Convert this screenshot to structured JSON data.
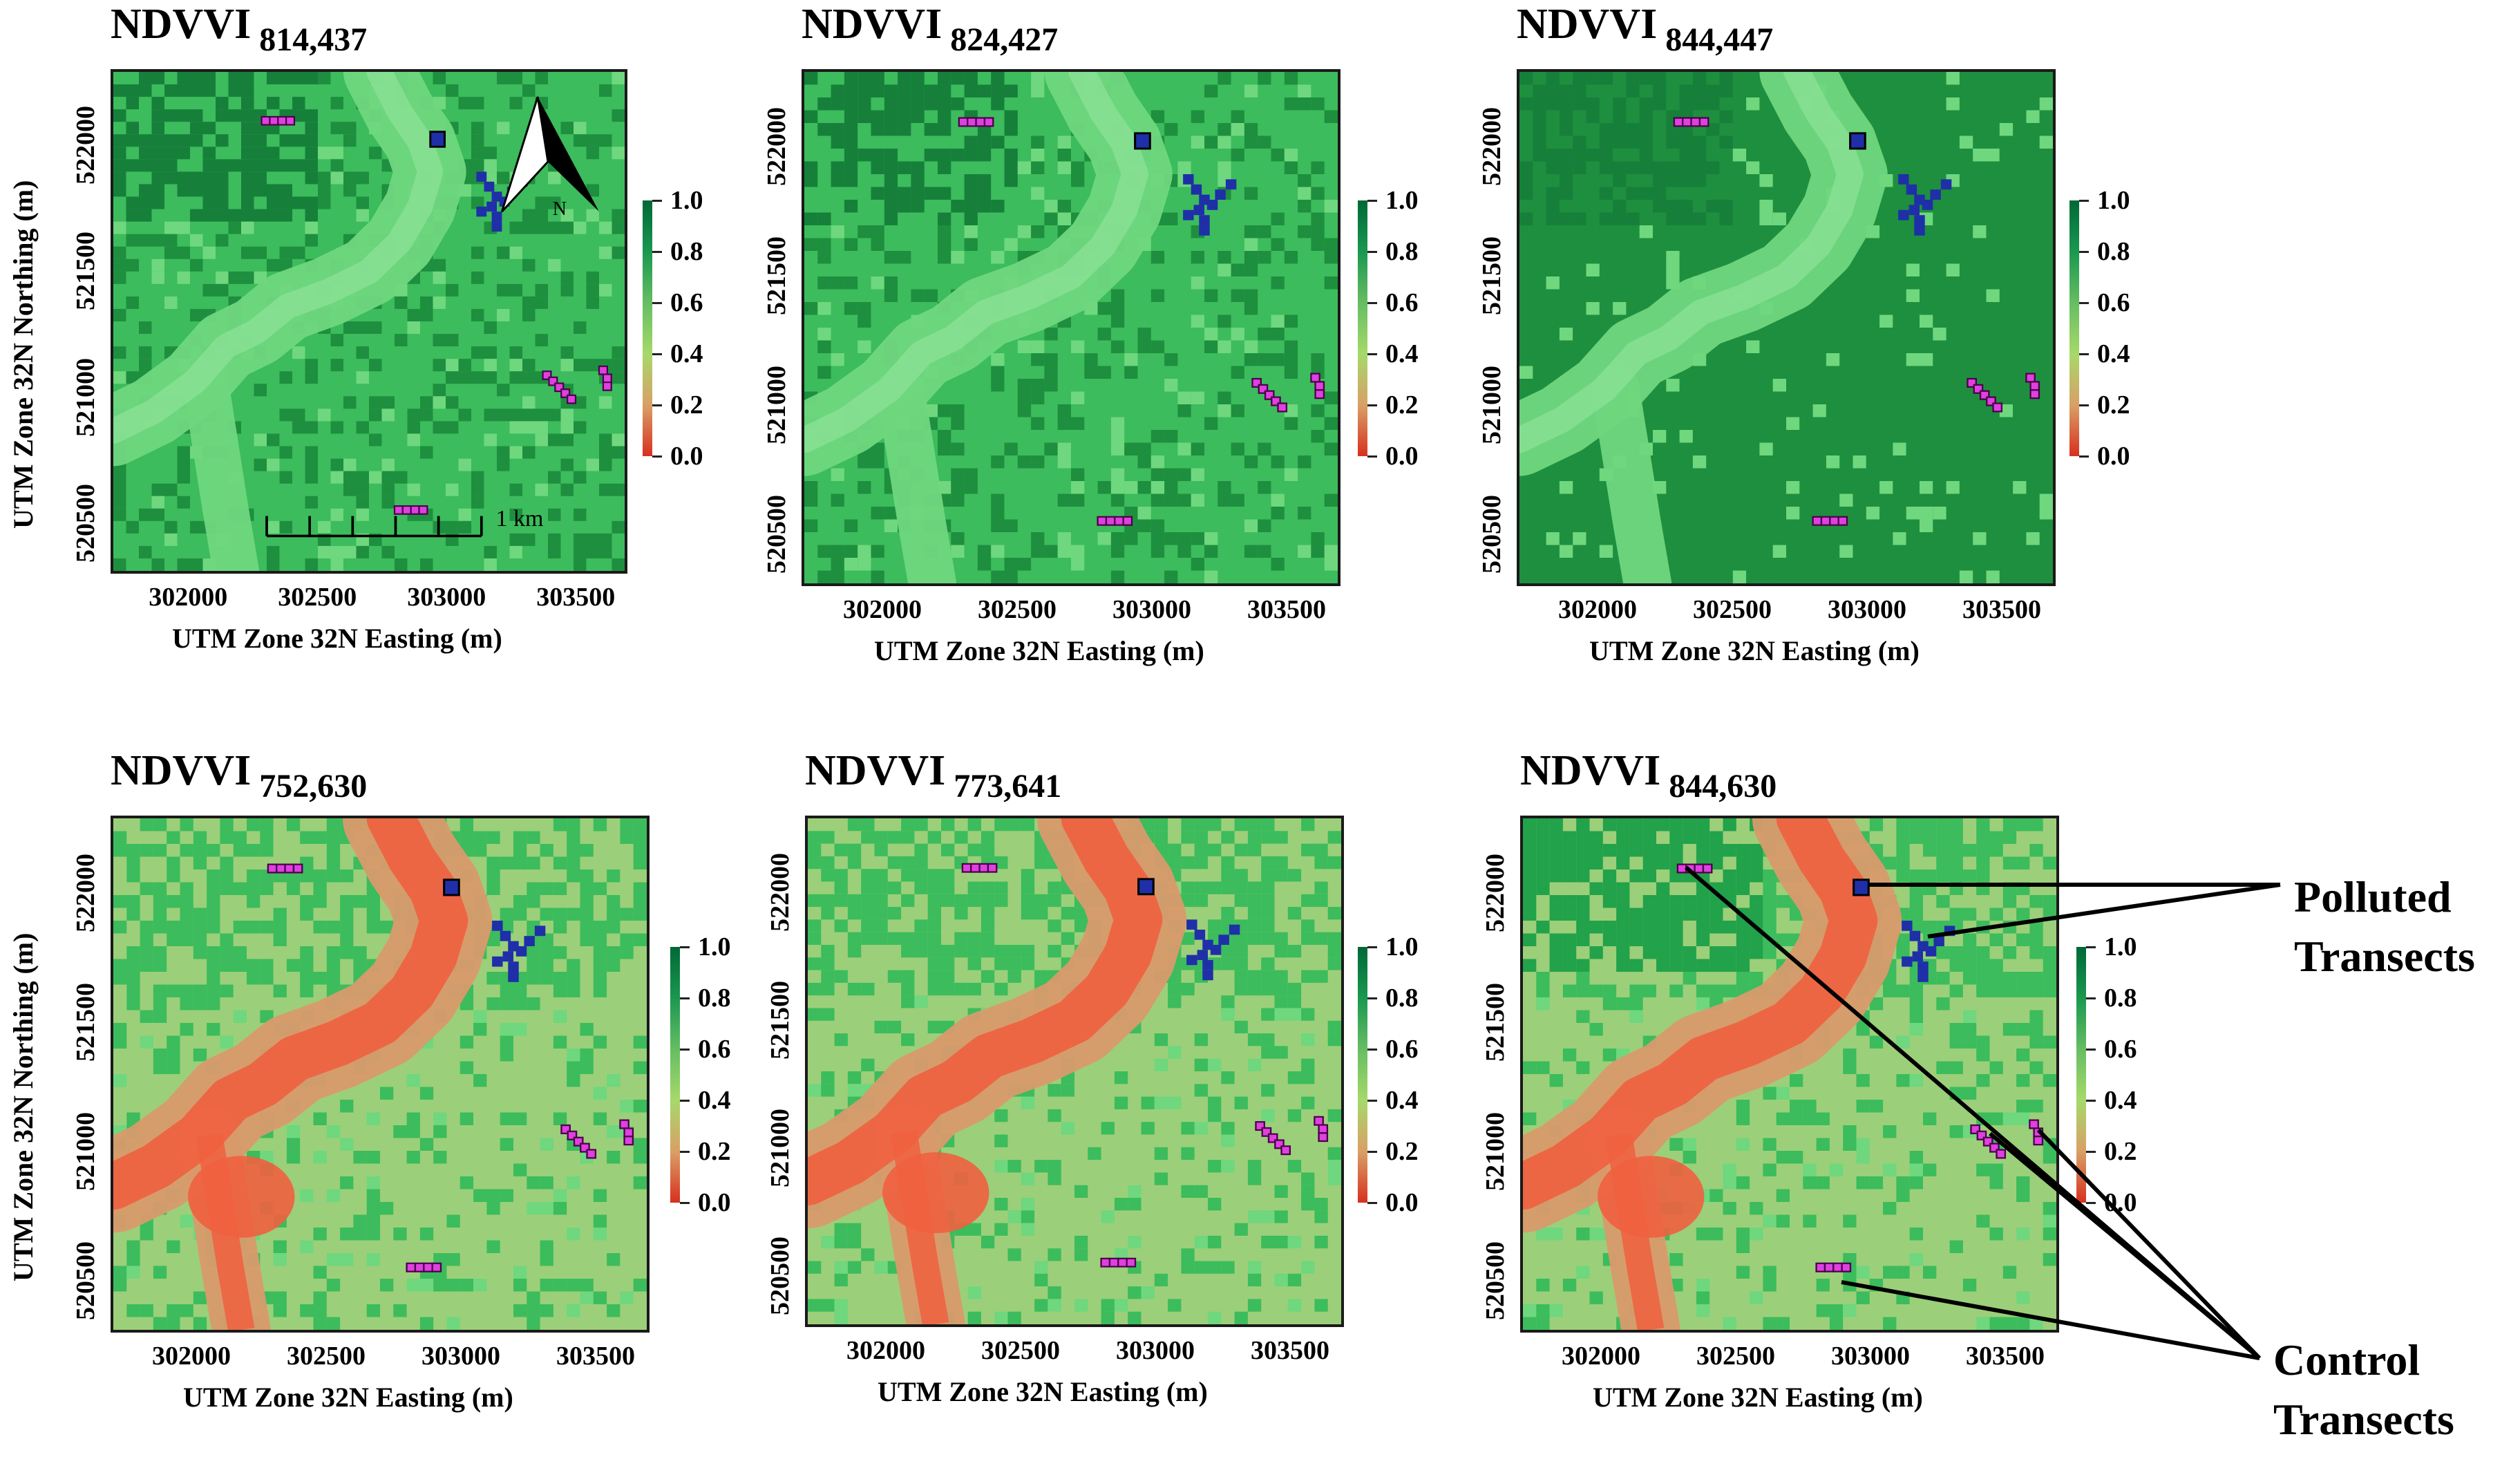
{
  "panels": [
    {
      "name": "NDVVI",
      "sub": "814,437",
      "variant": "a",
      "show_ylabel": true
    },
    {
      "name": "NDVVI",
      "sub": "824,427",
      "variant": "b",
      "show_ylabel": false
    },
    {
      "name": "NDVVI",
      "sub": "844,447",
      "variant": "c",
      "show_ylabel": false
    },
    {
      "name": "NDVVI",
      "sub": "752,630",
      "variant": "d",
      "show_ylabel": true
    },
    {
      "name": "NDVVI",
      "sub": "773,641",
      "variant": "e",
      "show_ylabel": false
    },
    {
      "name": "NDVVI",
      "sub": "844,630",
      "variant": "f",
      "show_ylabel": false
    }
  ],
  "axes": {
    "xlabel": "UTM Zone 32N Easting (m)",
    "ylabel": "UTM Zone 32N Northing (m)",
    "xticks": [
      "302000",
      "302500",
      "303000",
      "303500"
    ],
    "yticks": [
      "522000",
      "521500",
      "521000",
      "520500"
    ],
    "xlim": [
      301700,
      303700
    ],
    "ylim": [
      520300,
      522300
    ]
  },
  "colorbar": {
    "ticks": [
      "1.0",
      "0.8",
      "0.6",
      "0.4",
      "0.2",
      "0.0"
    ],
    "stops": [
      "#006837",
      "#1a9850",
      "#66bd63",
      "#a6d96a",
      "#d9a066",
      "#d7301f"
    ]
  },
  "north_arrow": {
    "label": "N"
  },
  "scale_bar": {
    "label": "1 km"
  },
  "annotations": {
    "polluted_line1": "Polluted",
    "polluted_line2": "Transects",
    "control_line1": "Control",
    "control_line2": "Transects"
  },
  "colors": {
    "control": "#e040e0",
    "polluted": "#1f2fa8",
    "veg_dark": "#1e8f3e",
    "veg_mid": "#3cbc5c",
    "veg_light": "#6fd77e",
    "bare_tan": "#9ccf79",
    "stress_red": "#f06040"
  }
}
